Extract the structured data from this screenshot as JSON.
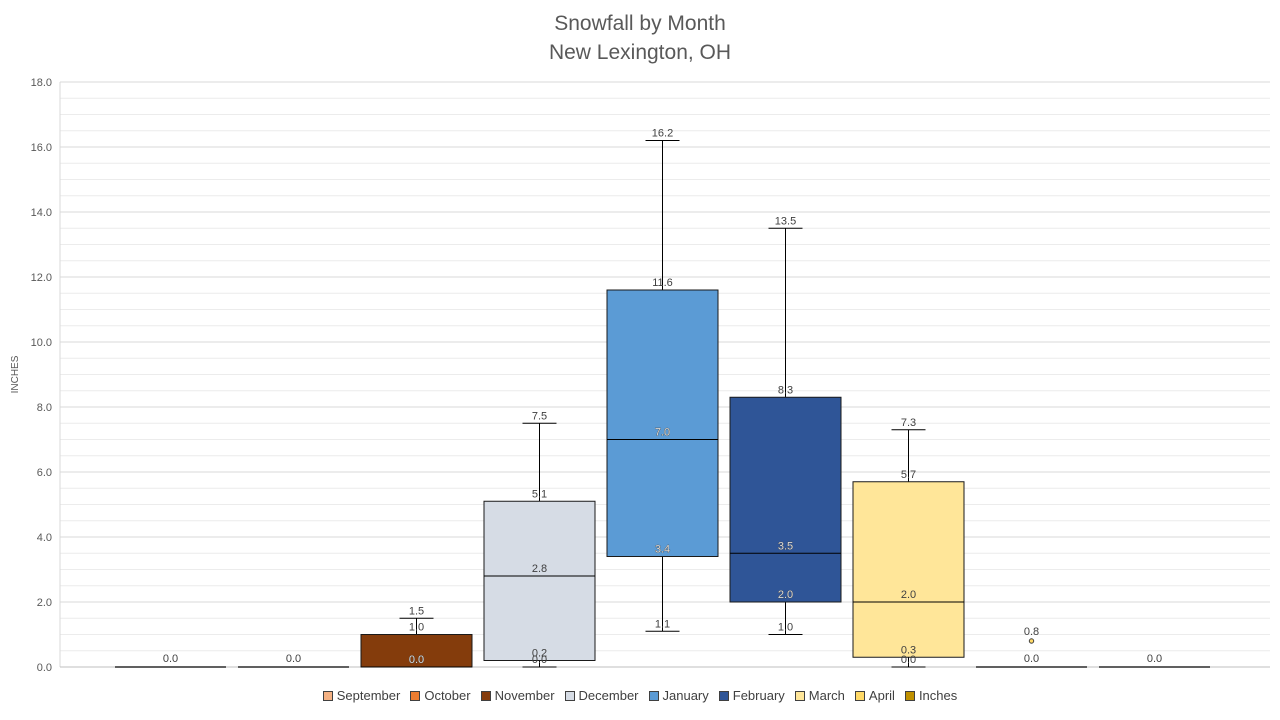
{
  "chart_data": {
    "type": "box",
    "title": "Snowfall by Month",
    "subtitle": "New Lexington, OH",
    "ylabel": "INCHES",
    "ylim": [
      0,
      18
    ],
    "yticks": [
      "0.0",
      "2.0",
      "4.0",
      "6.0",
      "8.0",
      "10.0",
      "12.0",
      "14.0",
      "16.0",
      "18.0"
    ],
    "grid": true,
    "legend_position": "bottom",
    "categories": [
      "September",
      "October",
      "November",
      "December",
      "January",
      "February",
      "March",
      "April",
      "Inches"
    ],
    "legend": [
      {
        "name": "September",
        "color": "#F4B183"
      },
      {
        "name": "October",
        "color": "#ED7D31"
      },
      {
        "name": "November",
        "color": "#843C0C"
      },
      {
        "name": "December",
        "color": "#D6DCE5"
      },
      {
        "name": "January",
        "color": "#5B9BD5"
      },
      {
        "name": "February",
        "color": "#2F5597"
      },
      {
        "name": "March",
        "color": "#FFE699"
      },
      {
        "name": "April",
        "color": "#FFD966"
      },
      {
        "name": "Inches",
        "color": "#BF9000"
      }
    ],
    "boxes": [
      {
        "name": "September",
        "color": "#F4B183",
        "min": 0.0,
        "q1": 0.0,
        "median": 0.0,
        "q3": 0.0,
        "max": 0.0,
        "labels": [
          "0.0"
        ]
      },
      {
        "name": "October",
        "color": "#ED7D31",
        "min": 0.0,
        "q1": 0.0,
        "median": 0.0,
        "q3": 0.0,
        "max": 0.0,
        "labels": [
          "0.0"
        ]
      },
      {
        "name": "November",
        "color": "#843C0C",
        "min": 0.0,
        "q1": 0.0,
        "median": 0.0,
        "q3": 1.0,
        "max": 1.5,
        "labels": [
          "1.5",
          "1.0",
          "0.0"
        ]
      },
      {
        "name": "December",
        "color": "#D6DCE5",
        "min": 0.0,
        "q1": 0.2,
        "median": 2.8,
        "q3": 5.1,
        "max": 7.5,
        "labels": [
          "7.5",
          "5.1",
          "2.8",
          "0.2",
          "0.0"
        ]
      },
      {
        "name": "January",
        "color": "#5B9BD5",
        "min": 1.1,
        "q1": 3.4,
        "median": 7.0,
        "q3": 11.6,
        "max": 16.2,
        "labels": [
          "16.2",
          "11.6",
          "7.0",
          "3.4",
          "1.1"
        ]
      },
      {
        "name": "February",
        "color": "#2F5597",
        "min": 1.0,
        "q1": 2.0,
        "median": 3.5,
        "q3": 8.3,
        "max": 13.5,
        "labels": [
          "13.5",
          "8.3",
          "3.5",
          "2.0",
          "1.0"
        ]
      },
      {
        "name": "March",
        "color": "#FFE699",
        "min": 0.0,
        "q1": 0.3,
        "median": 2.0,
        "q3": 5.7,
        "max": 7.3,
        "labels": [
          "7.3",
          "5.7",
          "2.0",
          "0.3",
          "0.0"
        ]
      },
      {
        "name": "April",
        "color": "#FFD966",
        "min": 0.0,
        "q1": 0.0,
        "median": 0.0,
        "q3": 0.0,
        "max": 0.0,
        "outliers": [
          0.8
        ],
        "labels": [
          "0.8",
          "0.0"
        ]
      },
      {
        "name": "Inches",
        "color": "#BF9000",
        "min": 0.0,
        "q1": 0.0,
        "median": 0.0,
        "q3": 0.0,
        "max": 0.0,
        "labels": [
          "0.0"
        ]
      }
    ]
  }
}
